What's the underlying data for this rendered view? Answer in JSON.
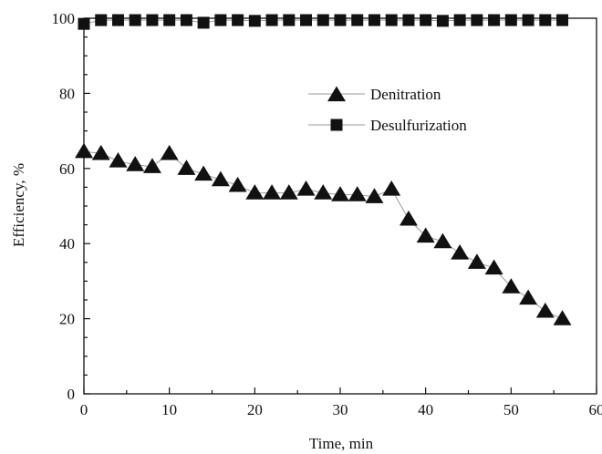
{
  "chart_data": {
    "type": "scatter",
    "title": "",
    "xlabel": "Time, min",
    "ylabel": "Efficiency, %",
    "xlim": [
      0,
      60
    ],
    "ylim": [
      0,
      100
    ],
    "x_major_ticks": [
      0,
      10,
      20,
      30,
      40,
      50,
      60
    ],
    "y_major_ticks": [
      0,
      20,
      40,
      60,
      80,
      100
    ],
    "x_tick_labels": [
      "0",
      "10",
      "20",
      "30",
      "40",
      "50",
      "60"
    ],
    "y_tick_labels": [
      "0",
      "20",
      "40",
      "60",
      "80",
      "100"
    ],
    "grid": false,
    "legend_position": "upper-right",
    "series": [
      {
        "name": "Denitration",
        "marker": "triangle",
        "color": "#111111",
        "x": [
          0,
          2,
          4,
          6,
          8,
          10,
          12,
          14,
          16,
          18,
          20,
          22,
          24,
          26,
          28,
          30,
          32,
          34,
          36,
          38,
          40,
          42,
          44,
          46,
          48,
          50,
          52,
          54,
          56
        ],
        "y": [
          64.5,
          64,
          62,
          61,
          60.5,
          64,
          60,
          58.5,
          57,
          55.5,
          53.5,
          53.5,
          53.5,
          54.5,
          53.5,
          53,
          53,
          52.5,
          54.5,
          46.5,
          42,
          40.5,
          37.5,
          35,
          33.5,
          28.5,
          25.5,
          22,
          20
        ]
      },
      {
        "name": "Desulfurization",
        "marker": "square",
        "color": "#111111",
        "x": [
          0,
          2,
          4,
          6,
          8,
          10,
          12,
          14,
          16,
          18,
          20,
          22,
          24,
          26,
          28,
          30,
          32,
          34,
          36,
          38,
          40,
          42,
          44,
          46,
          48,
          50,
          52,
          54,
          56
        ],
        "y": [
          98.5,
          99.5,
          99.5,
          99.5,
          99.5,
          99.5,
          99.5,
          98.8,
          99.5,
          99.5,
          99.3,
          99.5,
          99.5,
          99.5,
          99.5,
          99.5,
          99.5,
          99.5,
          99.5,
          99.5,
          99.5,
          99.3,
          99.5,
          99.5,
          99.5,
          99.5,
          99.5,
          99.5,
          99.5
        ]
      }
    ]
  }
}
